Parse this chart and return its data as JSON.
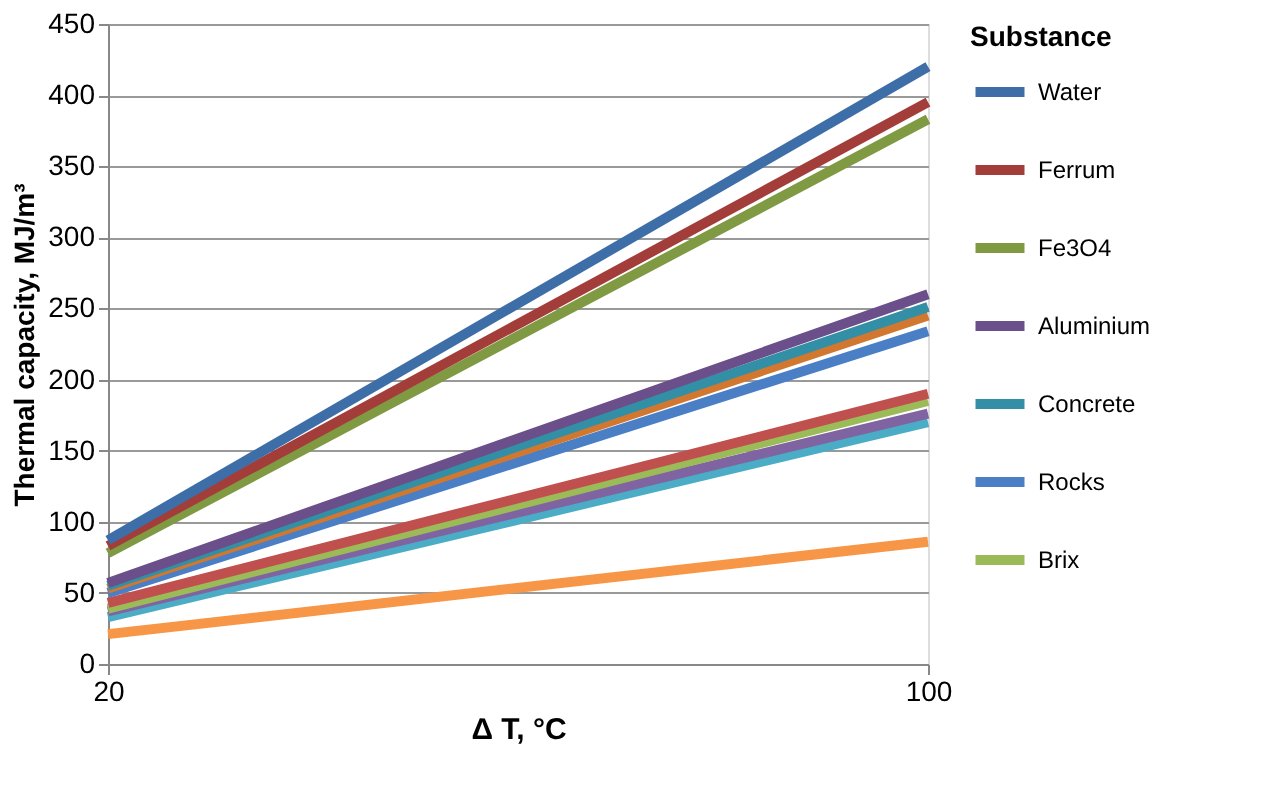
{
  "chart_data": {
    "type": "line",
    "xlabel": "Δ T, °C",
    "ylabel": "Thermal capacity, MJ/m³",
    "legend_title": "Substance",
    "x": [
      20,
      100
    ],
    "xlim": [
      20,
      100
    ],
    "xticks": [
      20,
      100
    ],
    "ylim": [
      0,
      450
    ],
    "yticks": [
      0,
      50,
      100,
      150,
      200,
      250,
      300,
      350,
      400,
      450
    ],
    "grid": "y",
    "legend": "right",
    "marker": "none",
    "line_style": "solid",
    "series": [
      {
        "name": "Water",
        "color": "#3d6ea8",
        "values": [
          87,
          420
        ]
      },
      {
        "name": "Ferrum",
        "color": "#a33d3a",
        "values": [
          83,
          395
        ]
      },
      {
        "name": "Fe3O4",
        "color": "#7f9a43",
        "values": [
          78,
          383
        ]
      },
      {
        "name": "Aluminium",
        "color": "#6a4f8a",
        "values": [
          57,
          260
        ]
      },
      {
        "name": "Concrete",
        "color": "#338fa6",
        "values": [
          55,
          251
        ]
      },
      {
        "color": "#d2772f",
        "values": [
          53,
          245
        ]
      },
      {
        "name": "Rocks",
        "color": "#4a7fc6",
        "values": [
          50,
          234
        ]
      },
      {
        "color": "#c0504d",
        "values": [
          43,
          190
        ]
      },
      {
        "name": "Brix",
        "color": "#9bbb59",
        "values": [
          39,
          185
        ]
      },
      {
        "color": "#8064a2",
        "values": [
          37,
          176
        ]
      },
      {
        "color": "#4bacc6",
        "values": [
          33,
          170
        ]
      },
      {
        "color": "#f79646",
        "values": [
          21,
          86
        ]
      }
    ]
  }
}
